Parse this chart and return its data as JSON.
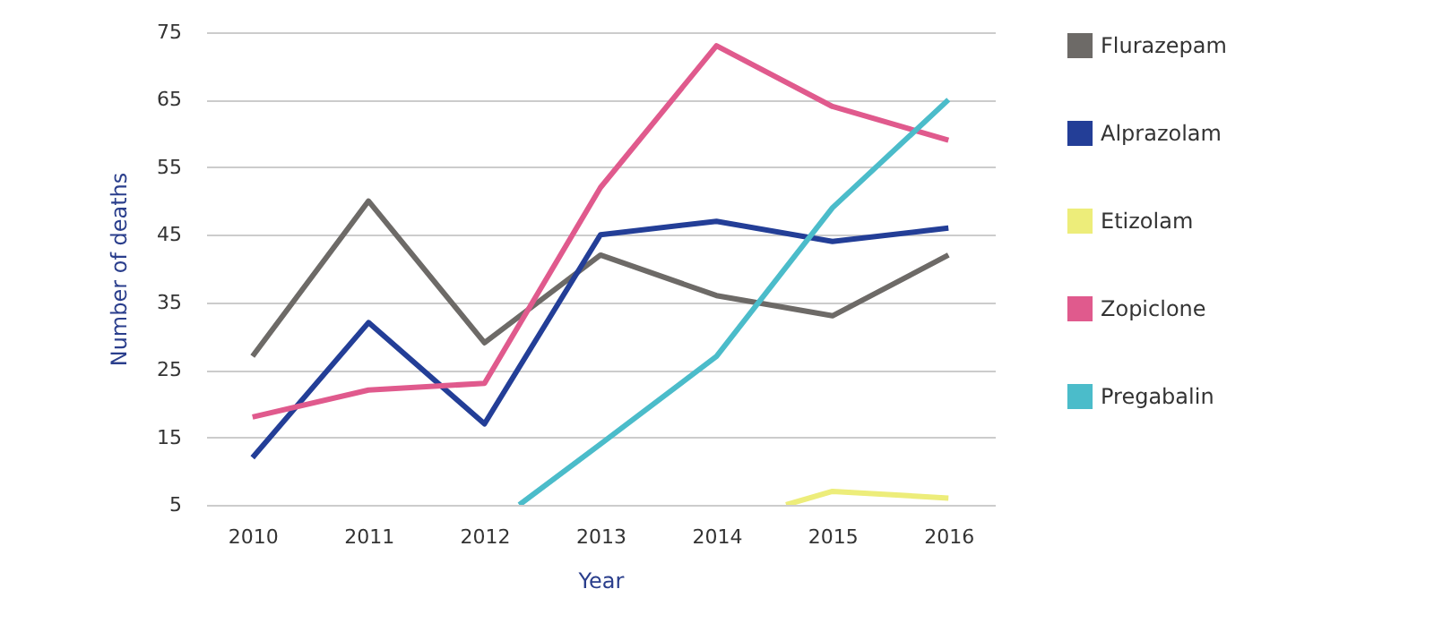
{
  "chart_data": {
    "type": "line",
    "xlabel": "Year",
    "ylabel": "Number of deaths",
    "xlim": [
      2009.6,
      2016.4
    ],
    "xticks": [
      2010,
      2011,
      2012,
      2013,
      2014,
      2015,
      2016
    ],
    "ylim": [
      5,
      75
    ],
    "yticks": [
      5,
      15,
      25,
      35,
      45,
      55,
      65,
      75
    ],
    "grid": "y",
    "legend": "right",
    "marker": "none",
    "line_style": "solid",
    "series": [
      {
        "name": "Flurazepam",
        "color": "#6d6a67",
        "x": [
          2010,
          2011,
          2012,
          2013,
          2014,
          2015,
          2016
        ],
        "values": [
          27,
          50,
          29,
          42,
          36,
          33,
          42
        ]
      },
      {
        "name": "Alprazolam",
        "color": "#233e97",
        "x": [
          2010,
          2011,
          2012,
          2013,
          2014,
          2015,
          2016
        ],
        "values": [
          12,
          32,
          17,
          45,
          47,
          44,
          46
        ]
      },
      {
        "name": "Etizolam",
        "color": "#eded7a",
        "x": [
          2014.6,
          2015,
          2016
        ],
        "values": [
          5,
          7,
          6
        ]
      },
      {
        "name": "Zopiclone",
        "color": "#e05a8d",
        "x": [
          2010,
          2011,
          2012,
          2013,
          2014,
          2015,
          2016
        ],
        "values": [
          18,
          22,
          23,
          52,
          73,
          64,
          59
        ]
      },
      {
        "name": "Pregabalin",
        "color": "#4bbcca",
        "x": [
          2012.3,
          2013,
          2014,
          2015,
          2016
        ],
        "values": [
          5,
          14,
          27,
          49,
          65
        ]
      }
    ]
  }
}
